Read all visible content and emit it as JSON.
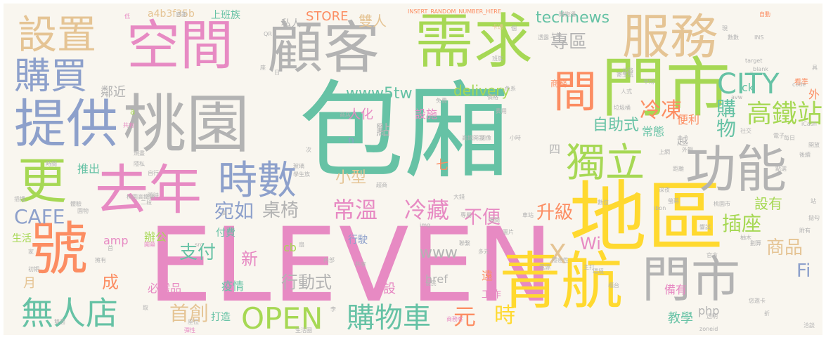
{
  "palette": {
    "teal": "#66c2a5",
    "orange": "#fc8d62",
    "blue": "#8da0cb",
    "pink": "#e78ac3",
    "green": "#a6d854",
    "yellow": "#ffd92f",
    "tan": "#e5c494",
    "gray": "#b3b3b3"
  },
  "words": [
    {
      "text": "包廂",
      "color": "teal"
    },
    {
      "text": "門市",
      "color": "green"
    },
    {
      "text": "ELEVEN",
      "color": "pink"
    },
    {
      "text": "地區",
      "color": "yellow"
    },
    {
      "text": "青航",
      "color": "yellow"
    },
    {
      "text": "門市",
      "color": "gray"
    },
    {
      "text": "桃園",
      "color": "gray"
    },
    {
      "text": "顧客",
      "color": "gray"
    },
    {
      "text": "需求",
      "color": "green"
    },
    {
      "text": "空間",
      "color": "pink"
    },
    {
      "text": "服務",
      "color": "tan"
    },
    {
      "text": "去年",
      "color": "pink"
    },
    {
      "text": "號",
      "color": "orange"
    },
    {
      "text": "更",
      "color": "green"
    },
    {
      "text": "設置",
      "color": "tan"
    },
    {
      "text": "購買",
      "color": "blue"
    },
    {
      "text": "提供",
      "color": "blue"
    },
    {
      "text": "間",
      "color": "orange"
    },
    {
      "text": "功能",
      "color": "gray"
    },
    {
      "text": "獨立",
      "color": "green"
    },
    {
      "text": "時數",
      "color": "blue"
    },
    {
      "text": "無人店",
      "color": "teal"
    },
    {
      "text": "OPEN",
      "color": "green"
    },
    {
      "text": "購物車",
      "color": "teal"
    },
    {
      "text": "CITY",
      "color": "teal"
    },
    {
      "text": "高鐵站",
      "color": "green"
    },
    {
      "text": "購物",
      "color": "teal"
    },
    {
      "text": "專區",
      "color": "gray"
    },
    {
      "text": "technews",
      "color": "teal"
    },
    {
      "text": "www5tw",
      "color": "teal"
    },
    {
      "text": "delivery",
      "color": "green"
    },
    {
      "text": "冷凍",
      "color": "orange"
    },
    {
      "text": "自助式",
      "color": "teal"
    },
    {
      "text": "宛如",
      "color": "blue"
    },
    {
      "text": "桌椅",
      "color": "gray"
    },
    {
      "text": "常溫",
      "color": "pink"
    },
    {
      "text": "冷藏",
      "color": "pink"
    },
    {
      "text": "不便",
      "color": "pink"
    },
    {
      "text": "升級",
      "color": "orange"
    },
    {
      "text": "插座",
      "color": "green"
    },
    {
      "text": "商品",
      "color": "tan"
    },
    {
      "text": "Wi",
      "color": "pink"
    },
    {
      "text": "Fi",
      "color": "blue"
    },
    {
      "text": "CAFE",
      "color": "blue"
    },
    {
      "text": "支付",
      "color": "teal"
    },
    {
      "text": "首創",
      "color": "tan"
    },
    {
      "text": "元",
      "color": "orange"
    },
    {
      "text": "時",
      "color": "yellow"
    },
    {
      "text": "www",
      "color": "gray"
    },
    {
      "text": "行動式",
      "color": "gray"
    },
    {
      "text": "小型",
      "color": "tan"
    },
    {
      "text": "新",
      "color": "pink"
    },
    {
      "text": "成",
      "color": "orange"
    },
    {
      "text": "X",
      "color": "tan"
    },
    {
      "text": "設有",
      "color": "green"
    },
    {
      "text": "STORE",
      "color": "orange"
    },
    {
      "text": "雙人",
      "color": "tan"
    },
    {
      "text": "私人",
      "color": "gray"
    },
    {
      "text": "上班族",
      "color": "teal"
    },
    {
      "text": "a4b3f35b",
      "color": "tan"
    },
    {
      "text": "INSERT_RANDOM_NUMBER_HERE",
      "color": "orange"
    },
    {
      "text": "鄰近",
      "color": "gray"
    },
    {
      "text": "人化",
      "color": "pink"
    },
    {
      "text": "設施",
      "color": "pink"
    },
    {
      "text": "點",
      "color": "gray"
    },
    {
      "text": "n",
      "color": "blue"
    },
    {
      "text": "七",
      "color": "orange"
    },
    {
      "text": "四",
      "color": "gray"
    },
    {
      "text": "便利",
      "color": "orange"
    },
    {
      "text": "常態",
      "color": "teal"
    },
    {
      "text": "越",
      "color": "gray"
    },
    {
      "text": "推出",
      "color": "teal"
    },
    {
      "text": "ck",
      "color": "teal"
    },
    {
      "text": "外",
      "color": "orange"
    },
    {
      "text": "商務",
      "color": "orange"
    },
    {
      "text": "amp",
      "color": "pink"
    },
    {
      "text": "付費",
      "color": "teal"
    },
    {
      "text": "辦公",
      "color": "green"
    },
    {
      "text": "cb",
      "color": "green"
    },
    {
      "text": "行駛",
      "color": "blue"
    },
    {
      "text": "必需品",
      "color": "pink"
    },
    {
      "text": "疫情",
      "color": "teal"
    },
    {
      "text": "設",
      "color": "pink"
    },
    {
      "text": "href",
      "color": "gray"
    },
    {
      "text": "遠",
      "color": "orange"
    },
    {
      "text": "工作",
      "color": "pink"
    },
    {
      "text": "打造",
      "color": "teal"
    },
    {
      "text": "教學",
      "color": "teal"
    },
    {
      "text": "備有",
      "color": "pink"
    },
    {
      "text": "php",
      "color": "gray"
    },
    {
      "text": "月",
      "color": "tan"
    },
    {
      "text": "生活",
      "color": "green"
    },
    {
      "text": "a",
      "color": "green"
    },
    {
      "text": "iCash",
      "color": "gray"
    },
    {
      "text": "ibon",
      "color": "gray"
    },
    {
      "text": "桃園高鐵站",
      "color": "gray"
    },
    {
      "text": "自動",
      "color": "orange"
    },
    {
      "text": "卡通",
      "color": "tan"
    },
    {
      "text": "看準",
      "color": "orange"
    },
    {
      "text": "_blank",
      "color": "gray"
    },
    {
      "text": "target",
      "color": "gray"
    },
    {
      "text": "code",
      "color": "gray"
    },
    {
      "text": "zoneid",
      "color": "gray"
    },
    {
      "text": "img",
      "color": "gray"
    },
    {
      "text": "src",
      "color": "gray"
    },
    {
      "text": "QR",
      "color": "gray"
    },
    {
      "text": "INS",
      "color": "gray"
    },
    {
      "text": "avw",
      "color": "gray"
    },
    {
      "text": "低",
      "color": "pink"
    },
    {
      "text": "感謝",
      "color": "gray"
    },
    {
      "text": "北路",
      "color": "gray"
    },
    {
      "text": "平均",
      "color": "gray"
    },
    {
      "text": "色系",
      "color": "gray"
    },
    {
      "text": "共有",
      "color": "pink"
    },
    {
      "text": "免費",
      "color": "gray"
    },
    {
      "text": "大錢",
      "color": "gray"
    },
    {
      "text": "專屬",
      "color": "gray"
    },
    {
      "text": "隔間",
      "color": "gray"
    },
    {
      "text": "車站",
      "color": "gray"
    },
    {
      "text": "官方",
      "color": "gray"
    },
    {
      "text": "透明",
      "color": "gray"
    },
    {
      "text": "多元",
      "color": "gray"
    },
    {
      "text": "電源",
      "color": "gray"
    },
    {
      "text": "內部",
      "color": "gray"
    },
    {
      "text": "共享",
      "color": "gray"
    },
    {
      "text": "民權路",
      "color": "pink"
    },
    {
      "text": "生活圈",
      "color": "gray"
    },
    {
      "text": "彈性",
      "color": "pink"
    },
    {
      "text": "座位",
      "color": "gray"
    },
    {
      "text": "隱密性",
      "color": "gray"
    },
    {
      "text": "櫃台",
      "color": "gray"
    },
    {
      "text": "柚木",
      "color": "gray"
    },
    {
      "text": "主打",
      "color": "gray"
    },
    {
      "text": "電子",
      "color": "gray"
    },
    {
      "text": "社交",
      "color": "gray"
    },
    {
      "text": "每日",
      "color": "gray"
    },
    {
      "text": "開放",
      "color": "gray"
    },
    {
      "text": "後續",
      "color": "gray"
    },
    {
      "text": "點選",
      "color": "gray"
    },
    {
      "text": "商務客",
      "color": "pink"
    },
    {
      "text": "便民",
      "color": "gray"
    },
    {
      "text": "環境",
      "color": "gray"
    },
    {
      "text": "圖片",
      "color": "gray"
    },
    {
      "text": "小時",
      "color": "gray"
    },
    {
      "text": "深夜",
      "color": "gray"
    },
    {
      "text": "螢幕",
      "color": "gray"
    },
    {
      "text": "距離",
      "color": "gray"
    },
    {
      "text": "外觀",
      "color": "gray"
    },
    {
      "text": "上網",
      "color": "gray"
    },
    {
      "text": "垃圾桶",
      "color": "gray"
    },
    {
      "text": "寄生紙",
      "color": "gray"
    },
    {
      "text": "人式",
      "color": "gray"
    },
    {
      "text": "價格",
      "color": "gray"
    },
    {
      "text": "圖像",
      "color": "gray"
    },
    {
      "text": "超商",
      "color": "gray"
    },
    {
      "text": "玻璃",
      "color": "gray"
    },
    {
      "text": "學生族",
      "color": "gray"
    },
    {
      "text": "自行",
      "color": "gray"
    },
    {
      "text": "隱私",
      "color": "gray"
    },
    {
      "text": "規畫",
      "color": "gray"
    },
    {
      "text": "時間",
      "color": "gray"
    },
    {
      "text": "插播",
      "color": "gray"
    },
    {
      "text": "體驗",
      "color": "gray"
    },
    {
      "text": "園物",
      "color": "gray"
    },
    {
      "text": "隨時",
      "color": "gray"
    },
    {
      "text": "二段",
      "color": "gray"
    },
    {
      "text": "初期",
      "color": "gray"
    },
    {
      "text": "擁有",
      "color": "gray"
    },
    {
      "text": "首",
      "color": "gray"
    },
    {
      "text": "家",
      "color": "gray"
    },
    {
      "text": "雙面",
      "color": "gray"
    },
    {
      "text": "取",
      "color": "gray"
    },
    {
      "text": "李",
      "color": "gray"
    },
    {
      "text": "桃園市",
      "color": "gray"
    },
    {
      "text": "響試",
      "color": "gray"
    },
    {
      "text": "劃算",
      "color": "gray"
    },
    {
      "text": "站",
      "color": "gray"
    },
    {
      "text": "拋勾",
      "color": "gray"
    },
    {
      "text": "附有",
      "color": "gray"
    },
    {
      "text": "洽談",
      "color": "gray"
    },
    {
      "text": "您邀卡",
      "color": "gray"
    },
    {
      "text": "折",
      "color": "gray"
    },
    {
      "text": "費用",
      "color": "gray"
    },
    {
      "text": "聯繫",
      "color": "gray"
    },
    {
      "text": "開幕",
      "color": "pink"
    },
    {
      "text": "上午",
      "color": "gray"
    },
    {
      "text": "數位",
      "color": "gray"
    },
    {
      "text": "扇",
      "color": "gray"
    },
    {
      "text": "高鐵開設",
      "color": "gray"
    },
    {
      "text": "商店",
      "color": "gray"
    },
    {
      "text": "次",
      "color": "gray"
    },
    {
      "text": "座",
      "color": "gray"
    },
    {
      "text": "具",
      "color": "gray"
    },
    {
      "text": "透露",
      "color": "gray"
    },
    {
      "text": "班族",
      "color": "gray"
    },
    {
      "text": "高",
      "color": "gray"
    },
    {
      "text": "日",
      "color": "gray"
    },
    {
      "text": "購物通",
      "color": "gray"
    },
    {
      "text": "個",
      "color": "gray"
    },
    {
      "text": "現",
      "color": "gray"
    },
    {
      "text": "數數",
      "color": "gray"
    },
    {
      "text": "機",
      "color": "gray"
    },
    {
      "text": "區分",
      "color": "gray"
    },
    {
      "text": "位",
      "color": "gray"
    }
  ]
}
